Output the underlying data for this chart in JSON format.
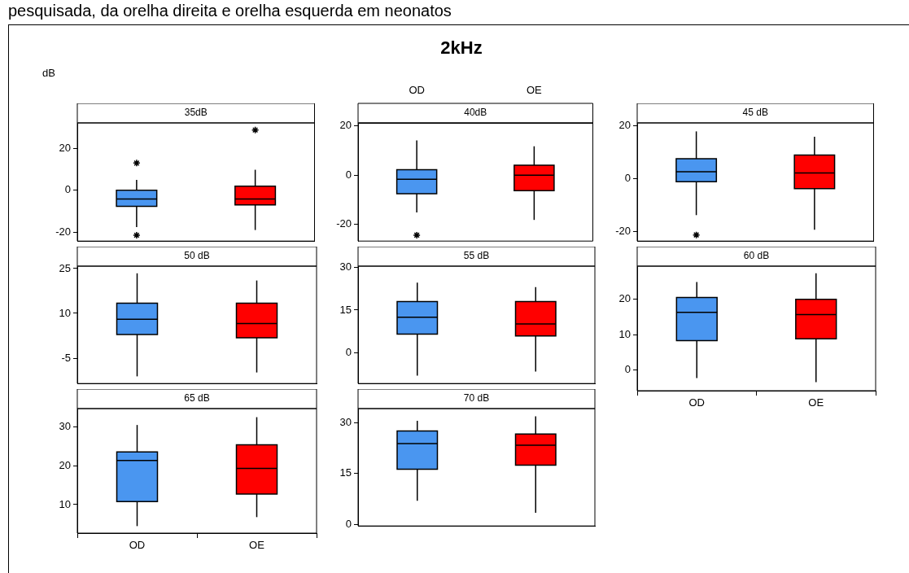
{
  "chart_data": [
    {
      "type": "other",
      "title": "2kHz",
      "ylabel": "dB",
      "annotations": [
        "pesquisada, da orelha direita e orelha esquerda em neonatos"
      ]
    },
    {
      "type": "box",
      "title": "35dB",
      "categories": [
        null,
        null
      ],
      "colors": [
        "#4a96f0",
        "#ff0000"
      ],
      "marker": "star",
      "tick_labels": "y",
      "ylim": [
        -24.3,
        32.2
      ],
      "yticks": [
        -20,
        0,
        20
      ],
      "boxes": [
        {
          "low": -17.6,
          "q1": -7.7,
          "median": -4.2,
          "q3": 0,
          "high": 5.0,
          "outliers": [
            13.0,
            -21.5
          ]
        },
        {
          "low": -19.0,
          "q1": -7.0,
          "median": -4.2,
          "q3": 1.9,
          "high": 9.8,
          "outliers": [
            28.8
          ]
        }
      ]
    },
    {
      "type": "box",
      "title": "40dB",
      "categories": [
        "OD",
        "OE"
      ],
      "colors": [
        "#4a96f0",
        "#ff0000"
      ],
      "marker": "star",
      "ylim": [
        -26.8,
        21.2
      ],
      "yticks": [
        -20,
        0,
        20
      ],
      "boxes": [
        {
          "low": -15.2,
          "q1": -7.6,
          "median": -1.7,
          "q3": 2.2,
          "high": 14.1,
          "outliers": [
            -24.4
          ]
        },
        {
          "low": -18.2,
          "q1": -6.3,
          "median": 0,
          "q3": 4.0,
          "high": 11.7
        }
      ]
    },
    {
      "type": "box",
      "title": "45 dB",
      "categories": [
        null,
        null
      ],
      "colors": [
        "#4a96f0",
        "#ff0000"
      ],
      "marker": "star",
      "tick_labels": "y",
      "ylim": [
        -23.5,
        21.1
      ],
      "yticks": [
        -20,
        0,
        20
      ],
      "boxes": [
        {
          "low": -13.7,
          "q1": -1.1,
          "median": 2.7,
          "q3": 7.6,
          "high": 17.9,
          "outliers": [
            -21.2
          ]
        },
        {
          "low": -19.2,
          "q1": -3.7,
          "median": 2.2,
          "q3": 9.0,
          "high": 15.9
        }
      ]
    },
    {
      "type": "box",
      "title": "50 dB",
      "categories": [
        null,
        null
      ],
      "colors": [
        "#4a96f0",
        "#ff0000"
      ],
      "tick_labels": "y",
      "ylim": [
        -13.5,
        25.8
      ],
      "yticks": [
        -5,
        10,
        25
      ],
      "boxes": [
        {
          "low": -11.1,
          "q1": 2.9,
          "median": 8.0,
          "q3": 13.4,
          "high": 23.4
        },
        {
          "low": -9.8,
          "q1": 1.8,
          "median": 6.6,
          "q3": 13.4,
          "high": 21.0
        }
      ]
    },
    {
      "type": "box",
      "title": "55 dB",
      "categories": [
        null,
        null
      ],
      "colors": [
        "#4a96f0",
        "#ff0000"
      ],
      "tick_labels": "y",
      "ylim": [
        -10.9,
        30.5
      ],
      "yticks": [
        0,
        15,
        30
      ],
      "boxes": [
        {
          "low": -8.1,
          "q1": 6.5,
          "median": 12.5,
          "q3": 18.0,
          "high": 24.7
        },
        {
          "low": -6.7,
          "q1": 5.9,
          "median": 10.1,
          "q3": 18.0,
          "high": 23.1
        }
      ]
    },
    {
      "type": "box",
      "title": "60 dB",
      "categories": [
        "OD",
        "OE"
      ],
      "colors": [
        "#4a96f0",
        "#ff0000"
      ],
      "ylim": [
        -5.9,
        29.4
      ],
      "yticks": [
        0,
        10,
        20
      ],
      "boxes": [
        {
          "low": -2.3,
          "q1": 8.3,
          "median": 16.3,
          "q3": 20.5,
          "high": 24.9
        },
        {
          "low": -3.5,
          "q1": 8.8,
          "median": 15.7,
          "q3": 20.0,
          "high": 27.4
        }
      ]
    },
    {
      "type": "box",
      "title": "65 dB",
      "categories": [
        "OD",
        "OE"
      ],
      "colors": [
        "#4a96f0",
        "#ff0000"
      ],
      "ylim": [
        2.7,
        34.6
      ],
      "yticks": [
        10,
        20,
        30
      ],
      "boxes": [
        {
          "low": 4.5,
          "q1": 10.8,
          "median": 21.3,
          "q3": 23.5,
          "high": 30.4
        },
        {
          "low": 6.8,
          "q1": 12.7,
          "median": 19.3,
          "q3": 25.3,
          "high": 32.4
        }
      ]
    },
    {
      "type": "box",
      "title": "70 dB",
      "categories": [
        null,
        null
      ],
      "colors": [
        "#4a96f0",
        "#ff0000"
      ],
      "tick_labels": "y",
      "ylim": [
        -0.5,
        34.1
      ],
      "yticks": [
        0,
        15,
        30
      ],
      "boxes": [
        {
          "low": 6.9,
          "q1": 16.2,
          "median": 23.8,
          "q3": 27.5,
          "high": 30.5
        },
        {
          "low": 3.4,
          "q1": 17.4,
          "median": 23.3,
          "q3": 26.6,
          "high": 31.8
        }
      ]
    }
  ]
}
